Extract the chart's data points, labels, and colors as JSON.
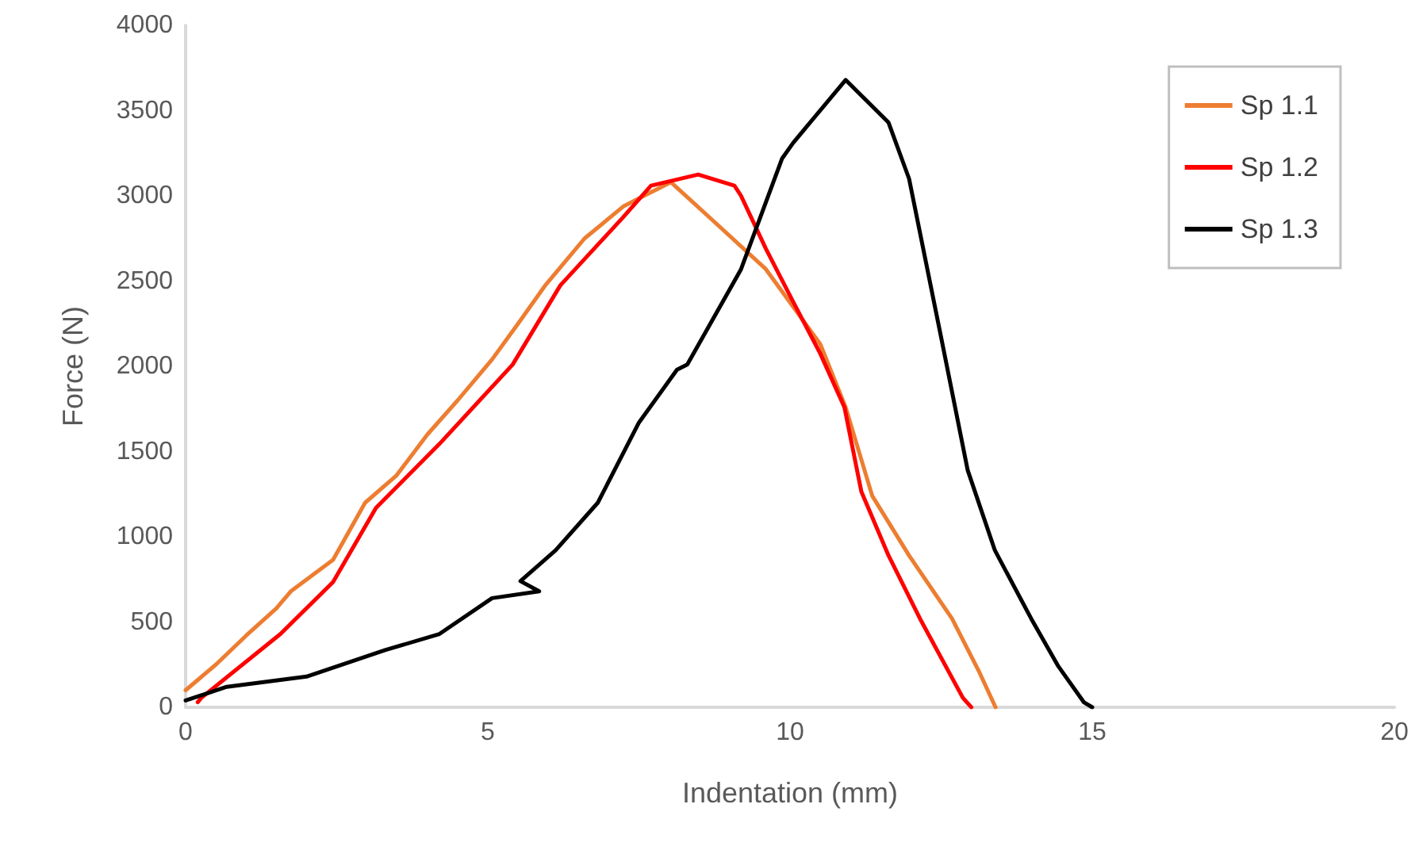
{
  "chart_data": {
    "type": "line",
    "xlabel": "Indentation (mm)",
    "ylabel": "Force (N)",
    "xlim": [
      0,
      20
    ],
    "xticks": [
      0,
      5,
      10,
      15,
      20
    ],
    "ylim": [
      0,
      4000
    ],
    "yticks": [
      0,
      500,
      1000,
      1500,
      2000,
      2500,
      3000,
      3500,
      4000
    ],
    "grid": false,
    "legend": "top right",
    "marker": "none",
    "line_style": "solid",
    "series": [
      {
        "name": "Sp 1.1",
        "color": "#ed7d31",
        "x": [
          0,
          0.5,
          1,
          1.5,
          1.74,
          2.44,
          2.97,
          3.49,
          4,
          4.5,
          5.07,
          5.5,
          5.94,
          6.6,
          7.25,
          8.03,
          8.74,
          9.6,
          10.5,
          10.92,
          11.36,
          11.97,
          12.68,
          13.12,
          13.4
        ],
        "values": [
          100,
          250,
          420,
          580,
          680,
          865,
          1200,
          1360,
          1600,
          1800,
          2040,
          2250,
          2470,
          2750,
          2940,
          3080,
          2850,
          2570,
          2130,
          1760,
          1240,
          890,
          520,
          215,
          0
        ]
      },
      {
        "name": "Sp 1.2",
        "color": "#ff0000",
        "x": [
          0.2,
          0.26,
          1.57,
          2.44,
          3.15,
          4.2,
          5.41,
          6.2,
          7.24,
          7.7,
          8.48,
          9.08,
          9.19,
          9.6,
          10.05,
          10.5,
          10.9,
          11.18,
          11.63,
          12.15,
          12.86,
          13.0
        ],
        "values": [
          30,
          55,
          430,
          735,
          1170,
          1545,
          2010,
          2475,
          2875,
          3060,
          3125,
          3060,
          3000,
          2690,
          2380,
          2075,
          1760,
          1265,
          890,
          520,
          55,
          0
        ]
      },
      {
        "name": "Sp 1.3",
        "color": "#000000",
        "x": [
          0,
          0.68,
          2.0,
          3.3,
          4.2,
          5.07,
          5.85,
          5.54,
          6.12,
          6.82,
          7.5,
          8.13,
          8.3,
          9.0,
          9.19,
          9.87,
          10.05,
          10.92,
          11.63,
          11.97,
          12.5,
          12.94,
          13.39,
          13.99,
          14.44,
          14.86,
          15.0
        ],
        "values": [
          40,
          120,
          180,
          335,
          430,
          640,
          680,
          740,
          920,
          1200,
          1670,
          1980,
          2010,
          2450,
          2570,
          3220,
          3310,
          3680,
          3430,
          3100,
          2170,
          1390,
          920,
          520,
          240,
          30,
          0
        ]
      }
    ]
  }
}
